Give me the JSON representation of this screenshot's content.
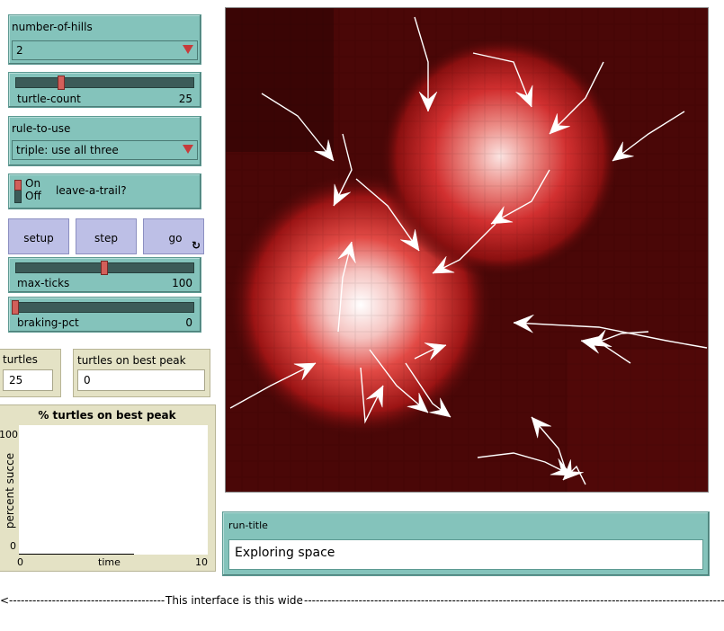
{
  "controls": {
    "hills_chooser": {
      "label": "number-of-hills",
      "value": "2"
    },
    "turtle_slider": {
      "label": "turtle-count",
      "value": "25",
      "fraction": 0.2
    },
    "rule_chooser": {
      "label": "rule-to-use",
      "value": "triple: use all three"
    },
    "trail_switch": {
      "on": "On",
      "off": "Off",
      "label": "leave-a-trail?",
      "state": "on"
    },
    "buttons": {
      "setup": "setup",
      "step": "step",
      "go": "go"
    },
    "ticks_slider": {
      "label": "max-ticks",
      "value": "100",
      "fraction": 0.5
    },
    "braking_slider": {
      "label": "braking-pct",
      "value": "0",
      "fraction": 0.0
    }
  },
  "monitors": {
    "turtles": {
      "label": "turtles",
      "value": "25"
    },
    "best_peak": {
      "label": "turtles on best peak",
      "value": "0"
    }
  },
  "plot": {
    "title": "% turtles on best peak",
    "ylabel": "percent succe",
    "xlabel": "time",
    "ymax": "100",
    "ymin": "0",
    "xmin": "0",
    "xmax": "10"
  },
  "run_title": {
    "label": "run-title",
    "value": "Exploring space"
  },
  "width_note": "This interface is this wide",
  "colors": {
    "widget_teal": "#84c3bb",
    "button_purple": "#bdbfe6",
    "monitor_tan": "#e4e2c5",
    "patch_red": "#d42a2a"
  }
}
